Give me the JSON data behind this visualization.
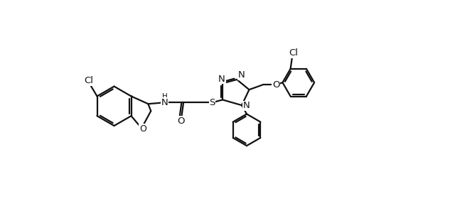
{
  "bg_color": "#ffffff",
  "line_color": "#111111",
  "line_width": 1.6,
  "figsize": [
    6.4,
    3.04
  ],
  "dpi": 100,
  "xlim": [
    0,
    12.8
  ],
  "ylim": [
    0,
    6.08
  ]
}
